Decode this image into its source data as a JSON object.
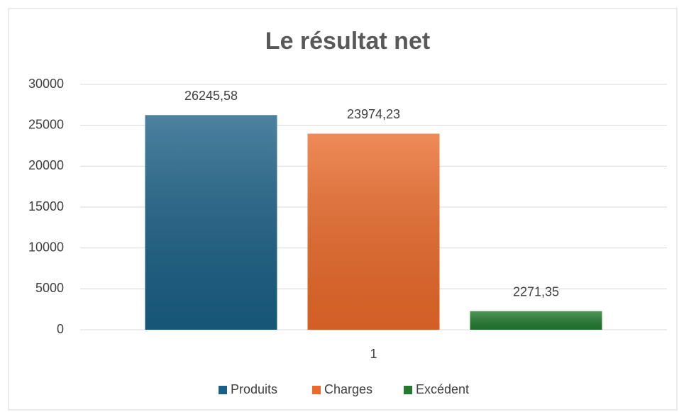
{
  "chart_data": {
    "type": "bar",
    "title": "Le résultat net",
    "categories": [
      "1"
    ],
    "series": [
      {
        "name": "Produits",
        "color": "#1a5f85",
        "values": [
          26245.58
        ],
        "value_labels": [
          "26245,58"
        ]
      },
      {
        "name": "Charges",
        "color": "#ea6a2a",
        "values": [
          23974.23
        ],
        "value_labels": [
          "23974,23"
        ]
      },
      {
        "name": "Excédent",
        "color": "#237a2e",
        "values": [
          2271.35
        ],
        "value_labels": [
          "2271,35"
        ]
      }
    ],
    "ylim": [
      0,
      30000
    ],
    "yticks": [
      0,
      5000,
      10000,
      15000,
      20000,
      25000,
      30000
    ],
    "grid": true,
    "legend": "bottom"
  }
}
